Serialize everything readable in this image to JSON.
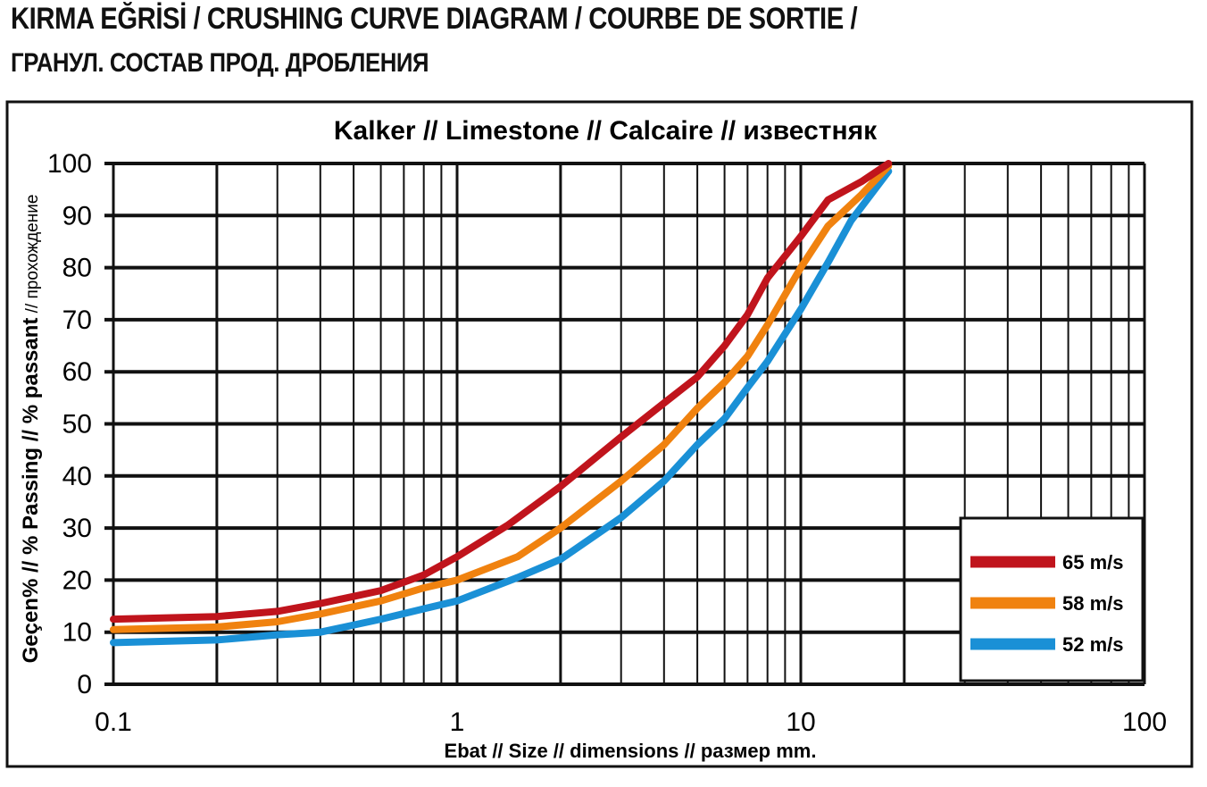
{
  "header": {
    "title_line1": "KIRMA EĞRİSİ / CRUSHING CURVE DIAGRAM / COURBE DE SORTIE /",
    "title_line2": "ГРАНУЛ. СОСТАВ ПРОД. ДРОБЛЕНИЯ"
  },
  "chart_data": {
    "type": "line",
    "title": "Kalker // Limestone // Calcaire // известняк",
    "xlabel": "Ebat // Size // dimensions // размер  mm.",
    "ylabel_bold": "Geçen% // % Passing // % passant",
    "ylabel_regular": " // прохождение",
    "xscale": "log",
    "xlim": [
      0.1,
      100
    ],
    "ylim": [
      0,
      100
    ],
    "grid": true,
    "legend_position": "bottom-right",
    "x_ticks": [
      "0.1",
      "1",
      "10",
      "100"
    ],
    "y_ticks": [
      "0",
      "10",
      "20",
      "30",
      "40",
      "50",
      "60",
      "70",
      "80",
      "90",
      "100"
    ],
    "series": [
      {
        "name": "65 m/s",
        "color": "#c0141c",
        "points": [
          [
            0.1,
            12.5
          ],
          [
            0.2,
            13
          ],
          [
            0.3,
            14
          ],
          [
            0.4,
            15.5
          ],
          [
            0.6,
            18
          ],
          [
            0.8,
            21
          ],
          [
            1,
            24.5
          ],
          [
            1.4,
            30.5
          ],
          [
            2,
            38
          ],
          [
            3,
            47.5
          ],
          [
            4,
            54
          ],
          [
            5,
            59
          ],
          [
            6,
            65
          ],
          [
            7,
            71
          ],
          [
            8,
            78
          ],
          [
            10,
            86
          ],
          [
            12,
            93
          ],
          [
            15,
            96.5
          ],
          [
            18,
            100
          ]
        ]
      },
      {
        "name": "58 m/s",
        "color": "#f0820f",
        "points": [
          [
            0.1,
            10.5
          ],
          [
            0.2,
            11
          ],
          [
            0.3,
            12
          ],
          [
            0.4,
            13.5
          ],
          [
            0.6,
            16
          ],
          [
            0.8,
            18.5
          ],
          [
            1,
            20
          ],
          [
            1.5,
            24.5
          ],
          [
            2,
            30
          ],
          [
            3,
            39
          ],
          [
            4,
            46
          ],
          [
            5,
            53
          ],
          [
            6,
            58
          ],
          [
            7,
            63
          ],
          [
            8,
            69
          ],
          [
            10,
            80
          ],
          [
            12,
            88
          ],
          [
            15,
            94
          ],
          [
            18,
            99.5
          ]
        ]
      },
      {
        "name": "52 m/s",
        "color": "#1a90d6",
        "points": [
          [
            0.1,
            8
          ],
          [
            0.2,
            8.5
          ],
          [
            0.3,
            9.5
          ],
          [
            0.4,
            10
          ],
          [
            0.6,
            12.5
          ],
          [
            0.8,
            14.5
          ],
          [
            1,
            16
          ],
          [
            1.5,
            20.5
          ],
          [
            2,
            24
          ],
          [
            3,
            32
          ],
          [
            4,
            39
          ],
          [
            5,
            46
          ],
          [
            6,
            51
          ],
          [
            7,
            57
          ],
          [
            8,
            62
          ],
          [
            10,
            72
          ],
          [
            12,
            81
          ],
          [
            14,
            89
          ],
          [
            18,
            98.5
          ]
        ]
      }
    ]
  }
}
